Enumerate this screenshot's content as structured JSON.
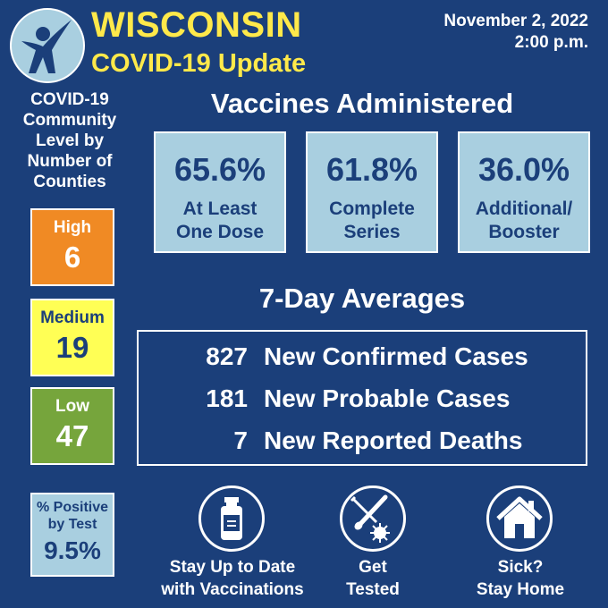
{
  "header": {
    "title_line1": "WISCONSIN",
    "title_line2": "COVID-19 Update",
    "date": "November 2, 2022",
    "time": "2:00 p.m.",
    "logo_icon": "person-figure-logo-icon"
  },
  "community": {
    "label": [
      "COVID-19",
      "Community",
      "Level by",
      "Number of",
      "Counties"
    ],
    "levels": [
      {
        "name": "High",
        "count": "6",
        "color": "#f08a24"
      },
      {
        "name": "Medium",
        "count": "19",
        "color": "#ffff55"
      },
      {
        "name": "Low",
        "count": "47",
        "color": "#76a53c"
      }
    ]
  },
  "percent_positive": {
    "label_line1": "% Positive",
    "label_line2": "by Test",
    "value": "9.5%"
  },
  "vaccines": {
    "heading": "Vaccines Administered",
    "items": [
      {
        "pct": "65.6%",
        "line1": "At Least",
        "line2": "One Dose"
      },
      {
        "pct": "61.8%",
        "line1": "Complete",
        "line2": "Series"
      },
      {
        "pct": "36.0%",
        "line1": "Additional/",
        "line2": "Booster"
      }
    ]
  },
  "averages": {
    "heading": "7-Day Averages",
    "rows": [
      {
        "num": "827",
        "label": "New Confirmed Cases"
      },
      {
        "num": "181",
        "label": "New Probable Cases"
      },
      {
        "num": "7",
        "label": "New Reported Deaths"
      }
    ]
  },
  "actions": [
    {
      "icon": "vaccine-vial-icon",
      "line1": "Stay Up to Date",
      "line2": "with Vaccinations"
    },
    {
      "icon": "test-swab-icon",
      "line1": "Get",
      "line2": "Tested"
    },
    {
      "icon": "house-icon",
      "line1": "Sick?",
      "line2": "Stay Home"
    }
  ],
  "colors": {
    "background": "#1b3f7a",
    "title": "#ffe94a",
    "box": "#a9cfe0"
  }
}
